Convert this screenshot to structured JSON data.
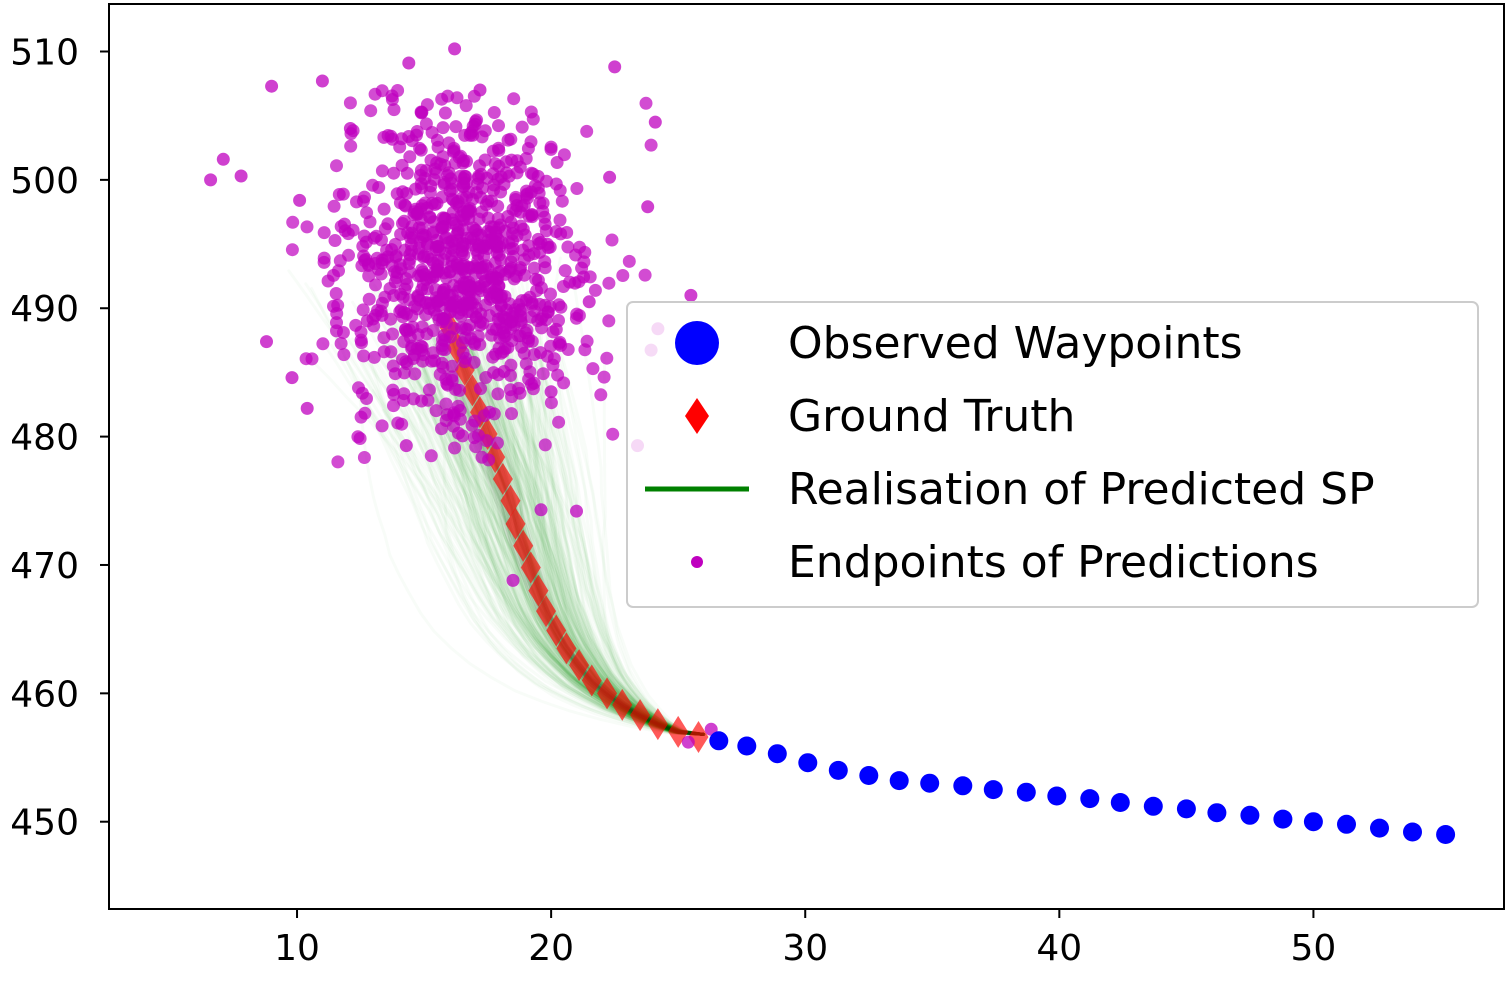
{
  "chart_data": {
    "type": "scatter",
    "title": "",
    "xlabel": "",
    "ylabel": "",
    "xlim": [
      2.6,
      57.5
    ],
    "ylim": [
      443.2,
      513.7
    ],
    "xticks": [
      10,
      20,
      30,
      40,
      50
    ],
    "yticks": [
      450,
      460,
      470,
      480,
      490,
      500,
      510
    ],
    "xtick_labels": [
      "10",
      "20",
      "30",
      "40",
      "50"
    ],
    "ytick_labels": [
      "450",
      "460",
      "470",
      "480",
      "490",
      "500",
      "510"
    ],
    "legend_position": "center-right",
    "colors": {
      "observed": "#0000ff",
      "ground_truth": "#ff0000",
      "realisation": "#008000",
      "endpoints": "#bf00bf"
    },
    "legend": [
      {
        "label": "Observed Waypoints",
        "marker": "circle-large",
        "color": "#0000ff"
      },
      {
        "label": "Ground Truth",
        "marker": "diamond",
        "color": "#ff0000"
      },
      {
        "label": "Realisation of Predicted SP",
        "marker": "line",
        "color": "#008000"
      },
      {
        "label": "Endpoints of Predictions",
        "marker": "circle-small",
        "color": "#bf00bf"
      }
    ],
    "series": [
      {
        "name": "Observed Waypoints",
        "marker": "circle",
        "x": [
          26.6,
          27.7,
          28.9,
          30.1,
          31.3,
          32.5,
          33.7,
          34.9,
          36.2,
          37.4,
          38.7,
          39.9,
          41.2,
          42.4,
          43.7,
          45.0,
          46.2,
          47.5,
          48.8,
          50.0,
          51.3,
          52.6,
          53.9,
          55.2
        ],
        "y": [
          456.3,
          455.9,
          455.3,
          454.6,
          454.0,
          453.6,
          453.2,
          453.0,
          452.8,
          452.5,
          452.3,
          452.0,
          451.8,
          451.5,
          451.2,
          451.0,
          450.7,
          450.5,
          450.2,
          450.0,
          449.8,
          449.5,
          449.2,
          449.0
        ]
      },
      {
        "name": "Ground Truth",
        "marker": "diamond",
        "x": [
          16.0,
          16.3,
          16.6,
          16.9,
          17.2,
          17.5,
          17.8,
          18.1,
          18.4,
          18.6,
          18.9,
          19.2,
          19.5,
          19.8,
          20.2,
          20.6,
          21.1,
          21.6,
          22.2,
          22.8,
          23.5,
          24.2,
          25.0,
          25.8
        ],
        "y": [
          488.5,
          486.9,
          485.2,
          483.6,
          481.9,
          480.2,
          478.4,
          476.7,
          475.0,
          473.2,
          471.5,
          469.8,
          468.0,
          466.4,
          464.9,
          463.5,
          462.2,
          461.0,
          460.0,
          459.1,
          458.3,
          457.6,
          457.0,
          456.6
        ]
      },
      {
        "name": "Realisation of Predicted SP",
        "marker": "line",
        "center_x": [
          26.0,
          25.0,
          24.2,
          23.5,
          22.8,
          22.2,
          21.6,
          21.1,
          20.6,
          20.2,
          19.8,
          19.5,
          19.2,
          18.9,
          18.6,
          18.4,
          18.1,
          17.8,
          17.5,
          17.2,
          16.9,
          16.6,
          16.3,
          16.0
        ],
        "center_y": [
          456.8,
          457.0,
          457.6,
          458.3,
          459.1,
          460.0,
          461.0,
          462.2,
          463.5,
          464.9,
          466.4,
          468.0,
          469.8,
          471.5,
          473.2,
          475.0,
          476.7,
          478.4,
          480.2,
          481.9,
          483.6,
          485.2,
          486.9,
          488.5
        ],
        "realisations": 300
      },
      {
        "name": "Endpoints of Predictions",
        "marker": "circle",
        "count": 900,
        "mean": [
          16.5,
          493.5
        ],
        "std": [
          2.4,
          6.5
        ],
        "notable_points": [
          {
            "x": 6.6,
            "y": 500.0
          },
          {
            "x": 7.1,
            "y": 501.6
          },
          {
            "x": 7.8,
            "y": 500.3
          },
          {
            "x": 9.0,
            "y": 507.3
          },
          {
            "x": 10.1,
            "y": 498.4
          },
          {
            "x": 11.0,
            "y": 507.7
          },
          {
            "x": 14.4,
            "y": 509.1
          },
          {
            "x": 16.2,
            "y": 510.2
          },
          {
            "x": 17.2,
            "y": 507.0
          },
          {
            "x": 22.5,
            "y": 508.8
          },
          {
            "x": 24.1,
            "y": 504.5
          },
          {
            "x": 23.8,
            "y": 497.9
          },
          {
            "x": 25.5,
            "y": 491.0
          },
          {
            "x": 24.2,
            "y": 488.4
          },
          {
            "x": 23.4,
            "y": 479.3
          },
          {
            "x": 21.0,
            "y": 474.2
          },
          {
            "x": 10.4,
            "y": 482.2
          },
          {
            "x": 8.8,
            "y": 487.4
          },
          {
            "x": 9.8,
            "y": 484.6
          },
          {
            "x": 14.3,
            "y": 479.3
          },
          {
            "x": 19.6,
            "y": 474.3
          },
          {
            "x": 18.5,
            "y": 468.8
          },
          {
            "x": 22.3,
            "y": 500.2
          },
          {
            "x": 20.0,
            "y": 483.5
          },
          {
            "x": 21.5,
            "y": 490.5
          },
          {
            "x": 12.1,
            "y": 504.0
          },
          {
            "x": 26.3,
            "y": 457.2
          },
          {
            "x": 25.4,
            "y": 456.2
          }
        ]
      }
    ]
  }
}
